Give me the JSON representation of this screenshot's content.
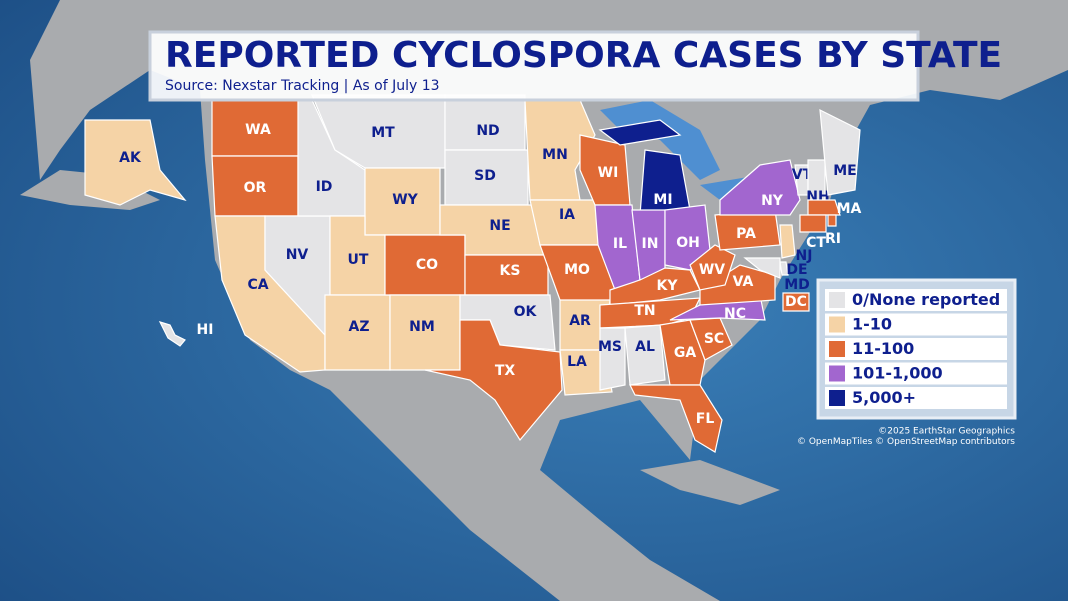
{
  "header": {
    "title": "REPORTED CYCLOSPORA CASES BY STATE",
    "subtitle": "Source: Nexstar Tracking | As of July 13"
  },
  "legend": [
    {
      "label": "0/None reported",
      "color": "#e4e4e6"
    },
    {
      "label": "1-10",
      "color": "#f5d3a6"
    },
    {
      "label": "11-100",
      "color": "#e06a35"
    },
    {
      "label": "101-1,000",
      "color": "#a266cf"
    },
    {
      "label": "5,000+",
      "color": "#0e1f8e"
    }
  ],
  "states": [
    {
      "label": "AK",
      "level": 1
    },
    {
      "label": "WA",
      "level": 2
    },
    {
      "label": "OR",
      "level": 2
    },
    {
      "label": "CA",
      "level": 1
    },
    {
      "label": "NV",
      "level": 0
    },
    {
      "label": "ID",
      "level": 0
    },
    {
      "label": "MT",
      "level": 0
    },
    {
      "label": "WY",
      "level": 1
    },
    {
      "label": "UT",
      "level": 1
    },
    {
      "label": "AZ",
      "level": 1
    },
    {
      "label": "CO",
      "level": 2
    },
    {
      "label": "NM",
      "level": 1
    },
    {
      "label": "ND",
      "level": 0
    },
    {
      "label": "SD",
      "level": 0
    },
    {
      "label": "NE",
      "level": 1
    },
    {
      "label": "KS",
      "level": 2
    },
    {
      "label": "OK",
      "level": 0
    },
    {
      "label": "TX",
      "level": 2
    },
    {
      "label": "MN",
      "level": 1
    },
    {
      "label": "IA",
      "level": 1
    },
    {
      "label": "MO",
      "level": 2
    },
    {
      "label": "AR",
      "level": 1
    },
    {
      "label": "LA",
      "level": 1
    },
    {
      "label": "WI",
      "level": 2
    },
    {
      "label": "IL",
      "level": 3
    },
    {
      "label": "MI",
      "level": 4
    },
    {
      "label": "IN",
      "level": 3
    },
    {
      "label": "OH",
      "level": 3
    },
    {
      "label": "KY",
      "level": 2
    },
    {
      "label": "TN",
      "level": 2
    },
    {
      "label": "MS",
      "level": 0
    },
    {
      "label": "AL",
      "level": 0
    },
    {
      "label": "GA",
      "level": 2
    },
    {
      "label": "FL",
      "level": 2
    },
    {
      "label": "SC",
      "level": 2
    },
    {
      "label": "NC",
      "level": 3
    },
    {
      "label": "VA",
      "level": 2
    },
    {
      "label": "WV",
      "level": 2
    },
    {
      "label": "PA",
      "level": 2
    },
    {
      "label": "NY",
      "level": 3
    },
    {
      "label": "VT",
      "level": 0
    },
    {
      "label": "NH",
      "level": 0
    },
    {
      "label": "ME",
      "level": 0
    },
    {
      "label": "MA",
      "level": 2
    },
    {
      "label": "RI",
      "level": 2
    },
    {
      "label": "CT",
      "level": 2
    },
    {
      "label": "NJ",
      "level": 1
    },
    {
      "label": "DE",
      "level": 0
    },
    {
      "label": "MD",
      "level": 0
    },
    {
      "label": "DC",
      "level": 2
    },
    {
      "label": "HI",
      "level": 0
    }
  ],
  "attribution": [
    "©2025 EarthStar Geographics",
    "© OpenMapTiles © OpenStreetMap contributors"
  ]
}
